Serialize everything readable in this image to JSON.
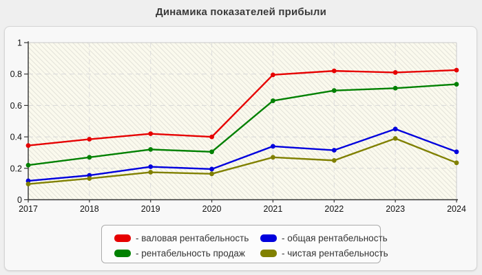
{
  "chart_data": {
    "type": "line",
    "title": "Динамика показателей прибыли",
    "categories": [
      "2017",
      "2018",
      "2019",
      "2020",
      "2021",
      "2022",
      "2023",
      "2024"
    ],
    "xlabel": "",
    "ylabel": "",
    "ylim": [
      0,
      1
    ],
    "y_ticks": [
      0,
      0.2,
      0.4,
      0.6,
      0.8,
      1
    ],
    "y_tick_labels": [
      "0",
      "0.2",
      "0.4",
      "0.6",
      "0.8",
      "1"
    ],
    "grid": true,
    "legend_position": "bottom-center",
    "series": [
      {
        "name": "валовая рентабельность",
        "color": "#e60000",
        "values": [
          0.345,
          0.385,
          0.42,
          0.4,
          0.795,
          0.82,
          0.81,
          0.825
        ]
      },
      {
        "name": "рентабельность продаж",
        "color": "#008000",
        "values": [
          0.22,
          0.27,
          0.32,
          0.305,
          0.63,
          0.695,
          0.71,
          0.735
        ]
      },
      {
        "name": "общая рентабельность",
        "color": "#0000dd",
        "values": [
          0.12,
          0.155,
          0.21,
          0.195,
          0.34,
          0.315,
          0.45,
          0.305
        ]
      },
      {
        "name": "чистая рентабельность",
        "color": "#808000",
        "values": [
          0.1,
          0.135,
          0.175,
          0.165,
          0.27,
          0.25,
          0.39,
          0.235
        ]
      }
    ]
  },
  "legend": {
    "items": [
      {
        "label": "- валовая рентабельность",
        "color": "#e60000"
      },
      {
        "label": "- общая рентабельность",
        "color": "#0000dd"
      },
      {
        "label": "- рентабельность продаж",
        "color": "#008000"
      },
      {
        "label": "- чистая рентабельность",
        "color": "#808000"
      }
    ]
  },
  "style_colors": {
    "page_background": "#efefef",
    "panel_background": "#f8f8f8",
    "plot_background": "#fbfaee",
    "gridline": "#d8d8d8",
    "axis": "#333333",
    "title_text": "#3a3a3a"
  }
}
